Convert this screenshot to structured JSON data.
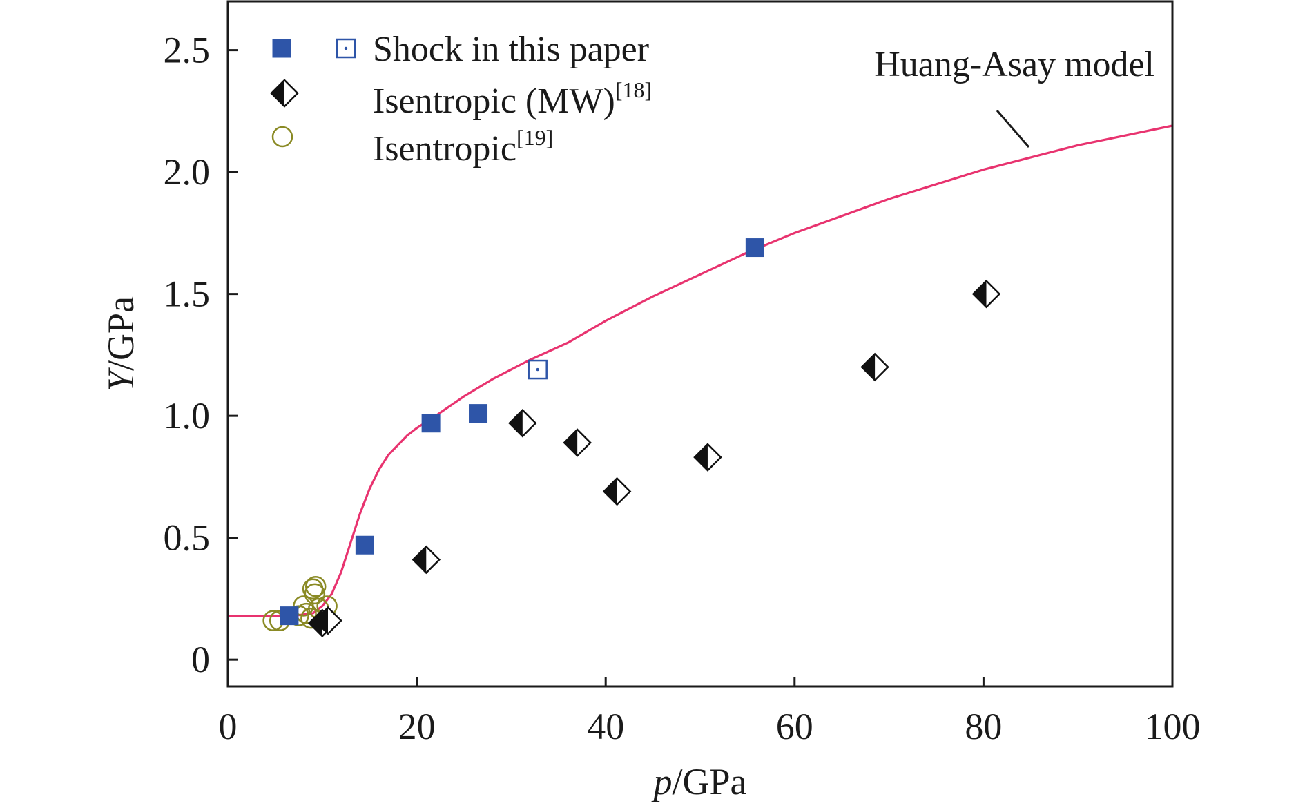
{
  "chart_data": {
    "type": "scatter",
    "xlabel": {
      "italic": "p",
      "rest": "/GPa"
    },
    "ylabel": {
      "italic": "Y",
      "rest": "/GPa"
    },
    "xlim": [
      0,
      100
    ],
    "ylim": [
      -0.11,
      2.7
    ],
    "x_ticks": [
      "0",
      "20",
      "40",
      "60",
      "80",
      "100"
    ],
    "y_ticks": [
      "0",
      "0.5",
      "1.0",
      "1.5",
      "2.0",
      "2.5"
    ],
    "grid": false,
    "legend_position": "top-left",
    "series": [
      {
        "name": "Shock in this paper",
        "marker": "filled-square",
        "color": "#2e55a8",
        "points": [
          [
            6.5,
            0.18
          ],
          [
            14.5,
            0.47
          ],
          [
            21.5,
            0.97
          ],
          [
            26.5,
            1.01
          ],
          [
            55.8,
            1.69
          ]
        ]
      },
      {
        "name": "Shock in this paper",
        "marker": "open-square-dot",
        "color": "#2e55a8",
        "points": [
          [
            32.8,
            1.19
          ]
        ]
      },
      {
        "name": "Isentropic (MW)",
        "name_sup": "[18]",
        "marker": "half-filled-diamond",
        "color": "#111111",
        "points": [
          [
            10.0,
            0.15
          ],
          [
            10.6,
            0.16
          ],
          [
            21.0,
            0.41
          ],
          [
            31.2,
            0.97
          ],
          [
            37.0,
            0.89
          ],
          [
            41.2,
            0.69
          ],
          [
            50.8,
            0.83
          ],
          [
            68.5,
            1.2
          ],
          [
            80.3,
            1.5
          ]
        ]
      },
      {
        "name": "Isentropic",
        "name_sup": "[19]",
        "marker": "open-circle",
        "color": "#8a8a24",
        "points": [
          [
            4.8,
            0.16
          ],
          [
            5.5,
            0.16
          ],
          [
            7.5,
            0.18
          ],
          [
            8.0,
            0.22
          ],
          [
            8.3,
            0.19
          ],
          [
            8.8,
            0.17
          ],
          [
            9.0,
            0.29
          ],
          [
            9.3,
            0.3
          ],
          [
            9.6,
            0.21
          ],
          [
            10.5,
            0.22
          ],
          [
            9.2,
            0.27
          ]
        ]
      },
      {
        "name": "Huang-Asay model",
        "marker": "line",
        "color": "#e8336f",
        "points": [
          [
            0,
            0.18
          ],
          [
            4,
            0.18
          ],
          [
            7,
            0.18
          ],
          [
            9,
            0.19
          ],
          [
            10,
            0.22
          ],
          [
            11,
            0.27
          ],
          [
            12,
            0.36
          ],
          [
            13,
            0.48
          ],
          [
            14,
            0.6
          ],
          [
            15,
            0.7
          ],
          [
            16,
            0.78
          ],
          [
            17,
            0.84
          ],
          [
            18,
            0.88
          ],
          [
            19,
            0.92
          ],
          [
            20,
            0.95
          ],
          [
            22,
            1.0
          ],
          [
            25,
            1.08
          ],
          [
            28,
            1.15
          ],
          [
            32,
            1.23
          ],
          [
            36,
            1.3
          ],
          [
            40,
            1.39
          ],
          [
            45,
            1.49
          ],
          [
            50,
            1.58
          ],
          [
            55,
            1.67
          ],
          [
            60,
            1.75
          ],
          [
            65,
            1.82
          ],
          [
            70,
            1.89
          ],
          [
            75,
            1.95
          ],
          [
            80,
            2.01
          ],
          [
            85,
            2.06
          ],
          [
            90,
            2.11
          ],
          [
            95,
            2.15
          ],
          [
            100,
            2.19
          ]
        ]
      }
    ],
    "annotations": [
      {
        "text": "Huang-Asay model"
      }
    ]
  }
}
